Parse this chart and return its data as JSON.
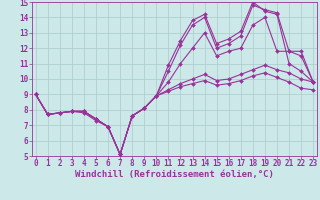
{
  "background_color": "#cce8e8",
  "grid_color": "#aacccc",
  "line_color": "#993399",
  "marker": "D",
  "markersize": 2.0,
  "linewidth": 0.8,
  "xlim": [
    -0.3,
    23.3
  ],
  "ylim": [
    5,
    15
  ],
  "xticks": [
    0,
    1,
    2,
    3,
    4,
    5,
    6,
    7,
    8,
    9,
    10,
    11,
    12,
    13,
    14,
    15,
    16,
    17,
    18,
    19,
    20,
    21,
    22,
    23
  ],
  "yticks": [
    5,
    6,
    7,
    8,
    9,
    10,
    11,
    12,
    13,
    14,
    15
  ],
  "xlabel": "Windchill (Refroidissement éolien,°C)",
  "xlabel_fontsize": 6.5,
  "tick_fontsize": 5.5,
  "tick_color": "#993399",
  "label_color": "#993399",
  "series": [
    [
      9.0,
      7.7,
      7.8,
      7.9,
      7.9,
      7.4,
      6.9,
      5.1,
      7.6,
      8.1,
      8.9,
      10.9,
      12.5,
      13.8,
      14.2,
      12.3,
      12.6,
      13.1,
      15.0,
      14.4,
      14.2,
      11.0,
      10.5,
      9.8
    ],
    [
      9.0,
      7.7,
      7.8,
      7.9,
      7.9,
      7.4,
      6.9,
      5.1,
      7.6,
      8.1,
      8.9,
      10.5,
      12.2,
      13.5,
      14.0,
      12.0,
      12.3,
      12.8,
      14.8,
      14.5,
      14.3,
      11.8,
      11.5,
      9.8
    ],
    [
      9.0,
      7.7,
      7.8,
      7.9,
      7.9,
      7.4,
      6.9,
      5.1,
      7.6,
      8.1,
      8.9,
      9.8,
      11.0,
      12.0,
      13.0,
      11.5,
      11.8,
      12.0,
      13.5,
      14.0,
      11.8,
      11.8,
      11.8,
      9.8
    ],
    [
      9.0,
      7.7,
      7.8,
      7.9,
      7.9,
      7.4,
      6.9,
      5.1,
      7.6,
      8.1,
      8.9,
      9.3,
      9.7,
      10.0,
      10.3,
      9.9,
      10.0,
      10.3,
      10.6,
      10.9,
      10.6,
      10.4,
      10.0,
      9.8
    ],
    [
      9.0,
      7.7,
      7.8,
      7.9,
      7.8,
      7.3,
      6.9,
      5.1,
      7.6,
      8.1,
      8.9,
      9.2,
      9.5,
      9.7,
      9.9,
      9.6,
      9.7,
      9.9,
      10.2,
      10.4,
      10.1,
      9.8,
      9.4,
      9.3
    ]
  ]
}
